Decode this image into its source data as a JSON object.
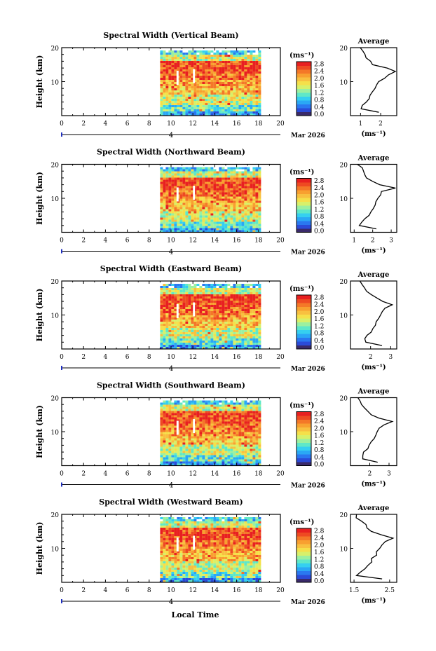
{
  "page": {
    "bottom_label": "Local Time"
  },
  "colorbar": {
    "unit": "(ms⁻¹)",
    "ticks": [
      "2.8",
      "2.4",
      "2.0",
      "1.6",
      "1.2",
      "0.8",
      "0.4",
      "0.0"
    ],
    "colors": [
      "#3a2a6a",
      "#2b4bd8",
      "#2a78f0",
      "#2aa8f5",
      "#35d0f0",
      "#5fe8c8",
      "#9cf0a0",
      "#d8f06a",
      "#f5e04a",
      "#f8c040",
      "#f8a030",
      "#f47828",
      "#ee4a22",
      "#e82020"
    ]
  },
  "chart_data": [
    {
      "type": "heatmap",
      "title": "Spectral Width (Vertical Beam)",
      "ylabel": "Height (km)",
      "x_ticks": [
        "0",
        "2",
        "4",
        "6",
        "8",
        "10",
        "12",
        "14",
        "16",
        "18",
        "20"
      ],
      "y_ticks": [
        "10",
        "20"
      ],
      "date_label": "4",
      "month_label": "Mar 2026",
      "colorbar_range": [
        0,
        2.8
      ],
      "data_coverage_hours": [
        9.0,
        18.0
      ],
      "avg": {
        "title": "Average",
        "xlabel": "(ms⁻¹)",
        "x_ticks": [
          "1",
          "2"
        ],
        "xlim": [
          0.5,
          2.8
        ],
        "height_km": [
          1,
          2,
          3,
          4,
          5,
          6,
          7,
          8,
          9,
          10,
          11,
          12,
          13,
          14,
          15,
          16,
          17,
          18,
          19,
          20
        ],
        "values": [
          1.9,
          1.0,
          1.1,
          1.3,
          1.4,
          1.5,
          1.6,
          1.7,
          1.8,
          1.9,
          2.2,
          2.4,
          2.7,
          2.3,
          1.6,
          1.5,
          1.3,
          1.2,
          1.1,
          1.0
        ]
      }
    },
    {
      "type": "heatmap",
      "title": "Spectral Width (Northward Beam)",
      "ylabel": "Height (km)",
      "x_ticks": [
        "0",
        "2",
        "4",
        "6",
        "8",
        "10",
        "12",
        "14",
        "16",
        "18",
        "20"
      ],
      "y_ticks": [
        "10",
        "20"
      ],
      "date_label": "4",
      "month_label": "Mar 2026",
      "colorbar_range": [
        0,
        2.8
      ],
      "data_coverage_hours": [
        9.0,
        18.0
      ],
      "avg": {
        "title": "Average",
        "xlabel": "(ms⁻¹)",
        "x_ticks": [
          "1",
          "2",
          "3"
        ],
        "xlim": [
          0.8,
          3.3
        ],
        "height_km": [
          1,
          2,
          3,
          4,
          5,
          6,
          7,
          8,
          9,
          10,
          11,
          12,
          13,
          14,
          15,
          16,
          17,
          18,
          19,
          20
        ],
        "values": [
          2.2,
          1.3,
          1.4,
          1.6,
          1.8,
          1.9,
          2.0,
          2.1,
          2.2,
          2.3,
          2.4,
          2.5,
          3.2,
          2.4,
          2.0,
          1.7,
          1.6,
          1.5,
          1.4,
          1.2
        ]
      }
    },
    {
      "type": "heatmap",
      "title": "Spectral Width (Eastward Beam)",
      "ylabel": "Height (km)",
      "x_ticks": [
        "0",
        "2",
        "4",
        "6",
        "8",
        "10",
        "12",
        "14",
        "16",
        "18",
        "20"
      ],
      "y_ticks": [
        "10",
        "20"
      ],
      "date_label": "4",
      "month_label": "Mar 2026",
      "colorbar_range": [
        0,
        2.8
      ],
      "data_coverage_hours": [
        9.0,
        18.0
      ],
      "avg": {
        "title": "Average",
        "xlabel": "(ms⁻¹)",
        "x_ticks": [
          "2",
          "3"
        ],
        "xlim": [
          1.0,
          3.3
        ],
        "height_km": [
          1,
          2,
          3,
          4,
          5,
          6,
          7,
          8,
          9,
          10,
          11,
          12,
          13,
          14,
          15,
          16,
          17,
          18,
          19,
          20
        ],
        "values": [
          2.6,
          1.8,
          1.7,
          1.8,
          2.0,
          2.1,
          2.2,
          2.3,
          2.4,
          2.5,
          2.6,
          2.7,
          3.1,
          2.6,
          2.3,
          2.0,
          1.8,
          1.7,
          1.6,
          1.5
        ]
      }
    },
    {
      "type": "heatmap",
      "title": "Spectral Width (Southward Beam)",
      "ylabel": "Height (km)",
      "x_ticks": [
        "0",
        "2",
        "4",
        "6",
        "8",
        "10",
        "12",
        "14",
        "16",
        "18",
        "20"
      ],
      "y_ticks": [
        "10",
        "20"
      ],
      "date_label": "4",
      "month_label": "Mar 2026",
      "colorbar_range": [
        0,
        2.8
      ],
      "data_coverage_hours": [
        9.0,
        18.0
      ],
      "avg": {
        "title": "Average",
        "xlabel": "(ms⁻¹)",
        "x_ticks": [
          "2",
          "3"
        ],
        "xlim": [
          1.0,
          3.4
        ],
        "height_km": [
          1,
          2,
          3,
          4,
          5,
          6,
          7,
          8,
          9,
          10,
          11,
          12,
          13,
          14,
          15,
          16,
          17,
          18,
          19,
          20
        ],
        "values": [
          2.4,
          1.6,
          1.6,
          1.7,
          1.9,
          2.0,
          2.1,
          2.2,
          2.3,
          2.4,
          2.5,
          2.7,
          3.2,
          2.5,
          2.1,
          1.9,
          1.7,
          1.6,
          1.5,
          1.4
        ]
      }
    },
    {
      "type": "heatmap",
      "title": "Spectral Width (Westward Beam)",
      "ylabel": "Height (km)",
      "x_ticks": [
        "0",
        "2",
        "4",
        "6",
        "8",
        "10",
        "12",
        "14",
        "16",
        "18",
        "20"
      ],
      "y_ticks": [
        "10",
        "20"
      ],
      "date_label": "4",
      "month_label": "Mar 2026",
      "colorbar_range": [
        0,
        2.8
      ],
      "data_coverage_hours": [
        9.0,
        18.0
      ],
      "avg": {
        "title": "Average",
        "xlabel": "(ms⁻¹)",
        "x_ticks": [
          "1.5",
          "2.5"
        ],
        "xlim": [
          1.4,
          2.7
        ],
        "height_km": [
          1,
          2,
          3,
          4,
          5,
          6,
          7,
          8,
          9,
          10,
          11,
          12,
          13,
          14,
          15,
          16,
          17,
          18,
          19,
          20
        ],
        "values": [
          2.3,
          1.6,
          1.7,
          1.8,
          1.9,
          2.0,
          2.0,
          2.1,
          2.1,
          2.2,
          2.3,
          2.4,
          2.6,
          2.3,
          2.0,
          1.9,
          1.8,
          1.7,
          1.6,
          1.6
        ]
      }
    }
  ]
}
